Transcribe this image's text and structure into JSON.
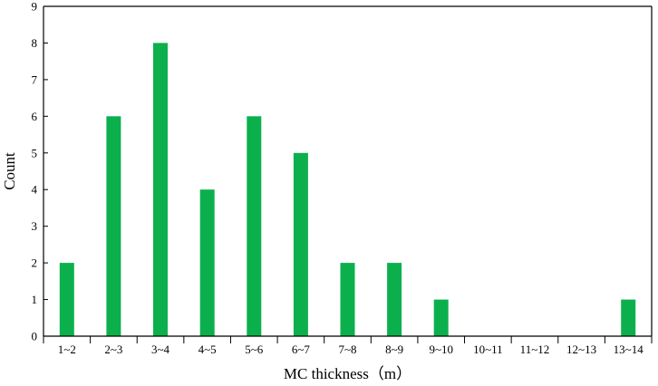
{
  "chart_data": {
    "type": "bar",
    "title": "",
    "xlabel": "MC thickness（m）",
    "ylabel": "Count",
    "categories": [
      "1~2",
      "2~3",
      "3~4",
      "4~5",
      "5~6",
      "6~7",
      "7~8",
      "8~9",
      "9~10",
      "10~11",
      "11~12",
      "12~13",
      "13~14"
    ],
    "values": [
      2,
      6,
      8,
      4,
      6,
      5,
      2,
      2,
      1,
      0,
      0,
      0,
      1
    ],
    "ylim": [
      0,
      9
    ],
    "yticks": [
      "0",
      "1",
      "2",
      "3",
      "4",
      "5",
      "6",
      "7",
      "8",
      "9"
    ],
    "grid": false,
    "legend": "none",
    "bar_color": "#0bb04c"
  }
}
